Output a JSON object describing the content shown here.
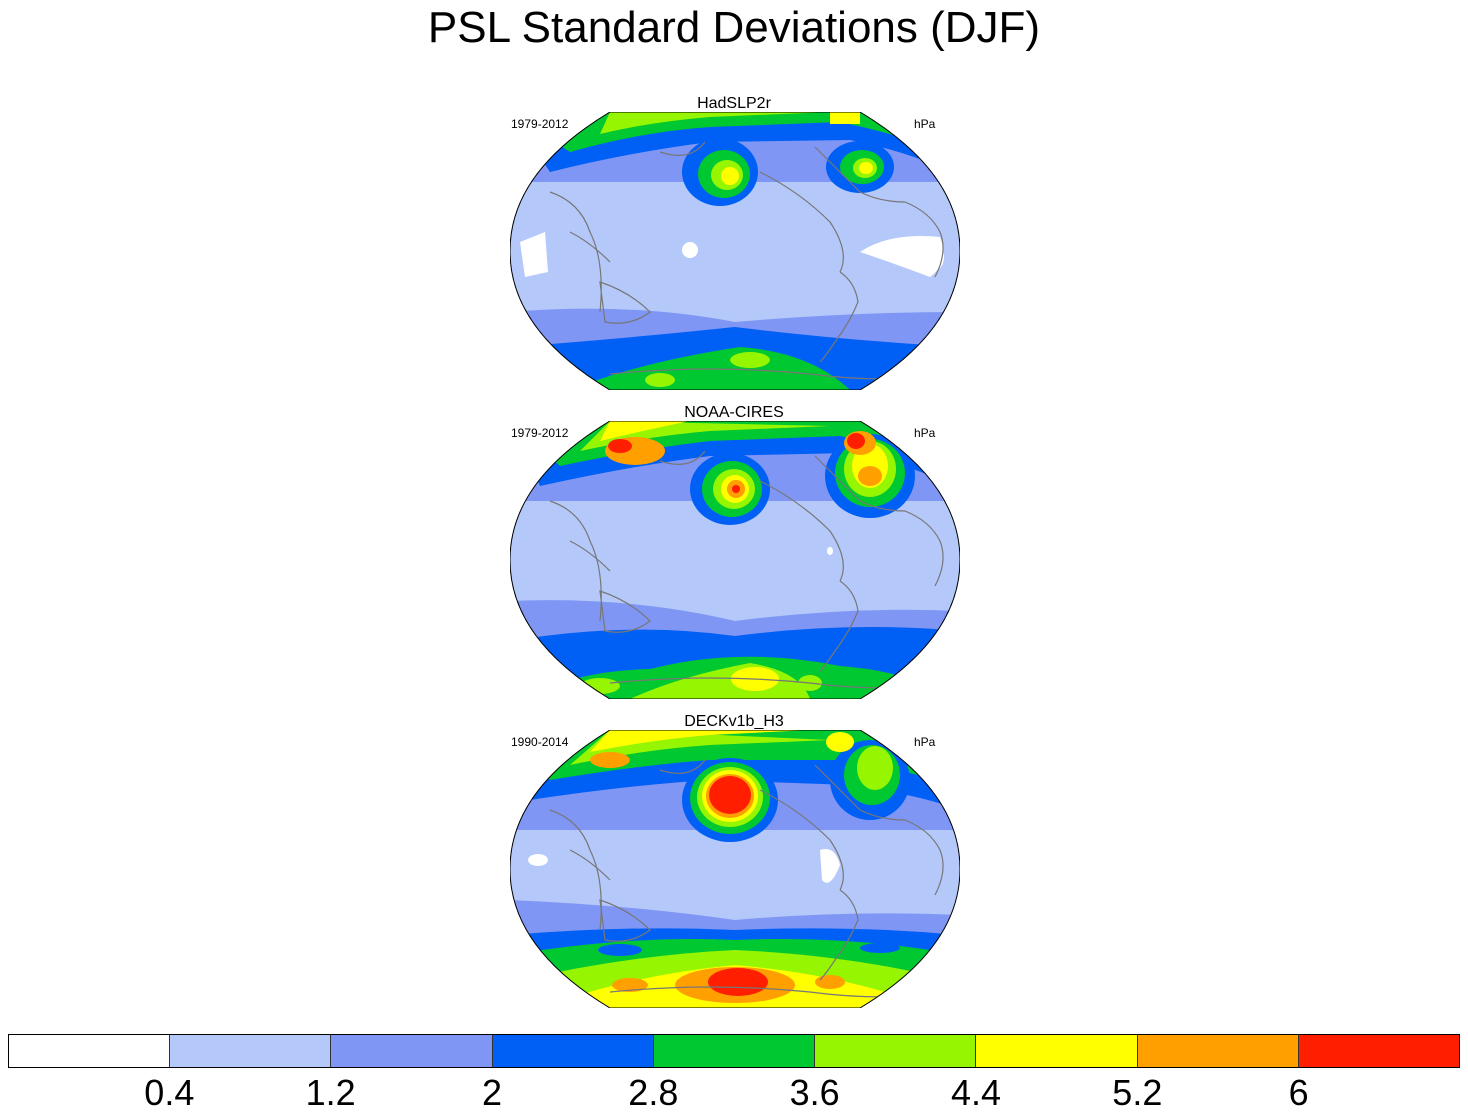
{
  "title": "PSL Standard Deviations (DJF)",
  "units": "hPa",
  "panels": [
    {
      "name": "HadSLP2r",
      "period": "1979-2012",
      "units": "hPa"
    },
    {
      "name": "NOAA-CIRES",
      "period": "1979-2012",
      "units": "hPa"
    },
    {
      "name": "DECKv1b_H3",
      "period": "1990-2014",
      "units": "hPa"
    }
  ],
  "colorbar": {
    "labels": [
      "0.4",
      "1.2",
      "2",
      "2.8",
      "3.6",
      "4.4",
      "5.2",
      "6"
    ],
    "colors": [
      "#ffffff",
      "#b4c8fa",
      "#7f96f5",
      "#005ff5",
      "#00c831",
      "#96f500",
      "#ffff00",
      "#ff9f00",
      "#ff1e00"
    ]
  },
  "chart_data": {
    "type": "heatmap",
    "title": "PSL Standard Deviations (DJF)",
    "projection": "global, Pacific-centered",
    "levels": [
      0.4,
      1.2,
      2,
      2.8,
      3.6,
      4.4,
      5.2,
      6
    ],
    "units": "hPa",
    "panels": [
      "HadSLP2r",
      "NOAA-CIRES",
      "DECKv1b_H3"
    ]
  }
}
